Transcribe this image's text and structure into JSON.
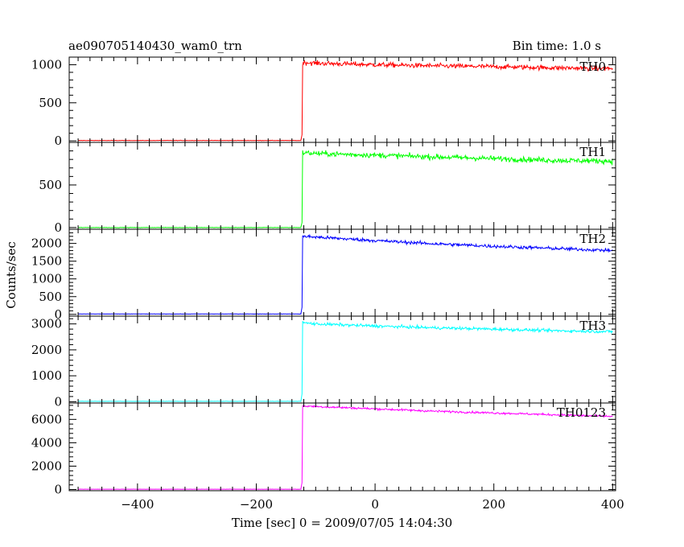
{
  "header": {
    "title": "ae090705140430_wam0_trn",
    "bin_time": "Bin time: 1.0 s"
  },
  "chart_data": {
    "type": "line",
    "title": "ae090705140430_wam0_trn",
    "xlabel": "Time [sec] 0 = 2009/07/05 14:04:30",
    "ylabel": "Counts/sec",
    "xlim": [
      -515,
      405
    ],
    "x_ticks": [
      -400,
      -200,
      0,
      200,
      400
    ],
    "x_tick_labels": [
      "−400",
      "−200",
      "0",
      "200",
      "400"
    ],
    "onset_time": -123,
    "panels": [
      {
        "name": "TH0",
        "color": "#ff0000",
        "ylim": [
          -20,
          1100
        ],
        "y_ticks": [
          0,
          500,
          1000
        ],
        "y_tick_labels": [
          "0",
          "500",
          "1000"
        ],
        "series": [
          {
            "x": -500,
            "y": 5
          },
          {
            "x": -125,
            "y": 5
          },
          {
            "x": -123,
            "y": 80
          },
          {
            "x": -122,
            "y": 1030
          },
          {
            "x": -100,
            "y": 1020
          },
          {
            "x": 0,
            "y": 1000
          },
          {
            "x": 100,
            "y": 985
          },
          {
            "x": 200,
            "y": 975
          },
          {
            "x": 300,
            "y": 960
          },
          {
            "x": 400,
            "y": 950
          }
        ],
        "noise": 30
      },
      {
        "name": "TH1",
        "color": "#00ff00",
        "ylim": [
          -20,
          1000
        ],
        "y_ticks": [
          0,
          500
        ],
        "y_tick_labels": [
          "0",
          "500"
        ],
        "series": [
          {
            "x": -500,
            "y": 0
          },
          {
            "x": -125,
            "y": 0
          },
          {
            "x": -123,
            "y": 60
          },
          {
            "x": -122,
            "y": 880
          },
          {
            "x": -100,
            "y": 870
          },
          {
            "x": 0,
            "y": 850
          },
          {
            "x": 100,
            "y": 830
          },
          {
            "x": 200,
            "y": 810
          },
          {
            "x": 300,
            "y": 790
          },
          {
            "x": 400,
            "y": 780
          }
        ],
        "noise": 30
      },
      {
        "name": "TH2",
        "color": "#0000ff",
        "ylim": [
          -50,
          2400
        ],
        "y_ticks": [
          0,
          500,
          1000,
          1500,
          2000
        ],
        "y_tick_labels": [
          "0",
          "500",
          "1000",
          "1500",
          "2000"
        ],
        "series": [
          {
            "x": -500,
            "y": 10
          },
          {
            "x": -125,
            "y": 10
          },
          {
            "x": -123,
            "y": 200
          },
          {
            "x": -122,
            "y": 2200
          },
          {
            "x": -100,
            "y": 2180
          },
          {
            "x": 0,
            "y": 2080
          },
          {
            "x": 100,
            "y": 1990
          },
          {
            "x": 200,
            "y": 1920
          },
          {
            "x": 300,
            "y": 1860
          },
          {
            "x": 400,
            "y": 1800
          }
        ],
        "noise": 45
      },
      {
        "name": "TH3",
        "color": "#00ffff",
        "ylim": [
          -50,
          3300
        ],
        "y_ticks": [
          0,
          1000,
          2000,
          3000
        ],
        "y_tick_labels": [
          "0",
          "1000",
          "2000",
          "3000"
        ],
        "series": [
          {
            "x": -500,
            "y": 15
          },
          {
            "x": -125,
            "y": 15
          },
          {
            "x": -123,
            "y": 300
          },
          {
            "x": -122,
            "y": 3050
          },
          {
            "x": -100,
            "y": 3000
          },
          {
            "x": 0,
            "y": 2920
          },
          {
            "x": 100,
            "y": 2850
          },
          {
            "x": 200,
            "y": 2800
          },
          {
            "x": 300,
            "y": 2740
          },
          {
            "x": 400,
            "y": 2700
          }
        ],
        "noise": 55
      },
      {
        "name": "TH0123",
        "color": "#ff00ff",
        "ylim": [
          -100,
          7400
        ],
        "y_ticks": [
          0,
          2000,
          4000,
          6000
        ],
        "y_tick_labels": [
          "0",
          "2000",
          "4000",
          "6000"
        ],
        "series": [
          {
            "x": -500,
            "y": 30
          },
          {
            "x": -125,
            "y": 30
          },
          {
            "x": -123,
            "y": 600
          },
          {
            "x": -122,
            "y": 7150
          },
          {
            "x": -100,
            "y": 7100
          },
          {
            "x": 0,
            "y": 6900
          },
          {
            "x": 100,
            "y": 6700
          },
          {
            "x": 200,
            "y": 6550
          },
          {
            "x": 300,
            "y": 6400
          },
          {
            "x": 400,
            "y": 6250
          }
        ],
        "noise": 85
      }
    ]
  }
}
